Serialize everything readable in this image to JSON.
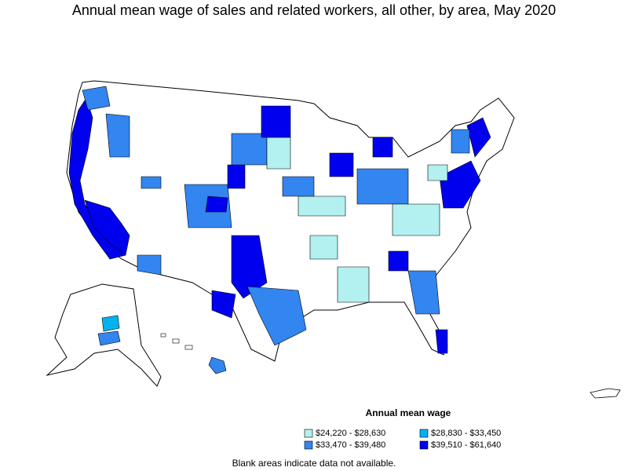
{
  "title": "Annual mean wage of sales and related workers, all other, by area, May 2020",
  "legend": {
    "title": "Annual mean wage",
    "items": [
      {
        "label": "$24,220 - $28,630",
        "color": "#b3f0f0"
      },
      {
        "label": "$28,830 - $33,450",
        "color": "#00b3f0"
      },
      {
        "label": "$33,470 - $39,480",
        "color": "#3385f0"
      },
      {
        "label": "$39,510 - $61,640",
        "color": "#0000ee"
      }
    ]
  },
  "note": "Blank areas indicate data not available."
}
